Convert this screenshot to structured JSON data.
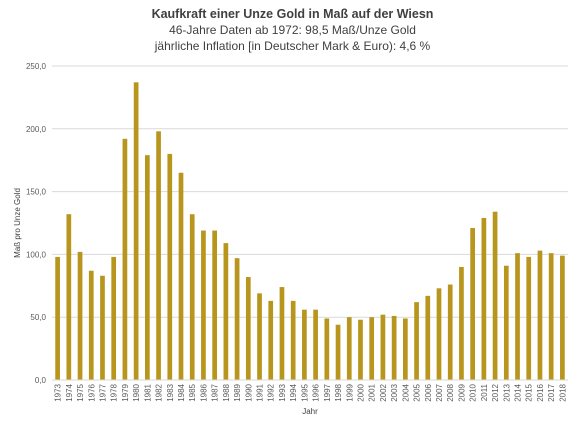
{
  "chart_data": {
    "type": "bar",
    "title": "Kaufkraft einer Unze Gold in Maß auf der Wiesn",
    "subtitle_lines": [
      "46-Jahre Daten ab 1972:  98,5 Maß/Unze Gold",
      "jährliche Inflation [in Deutscher Mark & Euro): 4,6 %"
    ],
    "xlabel": "Jahr",
    "ylabel": "Maß pro Unze Gold",
    "ylim": [
      0,
      250
    ],
    "yticks": [
      "0,0",
      "50,0",
      "100,0",
      "150,0",
      "200,0",
      "250,0"
    ],
    "grid": true,
    "legend": "none",
    "bar_color": "#B8961E",
    "categories": [
      "1973",
      "1974",
      "1975",
      "1976",
      "1977",
      "1978",
      "1979",
      "1980",
      "1981",
      "1982",
      "1983",
      "1984",
      "1985",
      "1986",
      "1987",
      "1988",
      "1989",
      "1990",
      "1991",
      "1992",
      "1993",
      "1994",
      "1995",
      "1996",
      "1997",
      "1998",
      "1999",
      "2000",
      "2001",
      "2002",
      "2003",
      "2004",
      "2005",
      "2006",
      "2007",
      "2008",
      "2009",
      "2010",
      "2011",
      "2012",
      "2013",
      "2014",
      "2015",
      "2016",
      "2017",
      "2018"
    ],
    "values": [
      98,
      132,
      102,
      87,
      83,
      98,
      192,
      237,
      179,
      198,
      180,
      165,
      132,
      119,
      119,
      109,
      97,
      82,
      69,
      63,
      74,
      63,
      56,
      56,
      49,
      44,
      50,
      48,
      50,
      52,
      51,
      49,
      62,
      67,
      73,
      76,
      90,
      121,
      129,
      134,
      91,
      101,
      98,
      103,
      101,
      99
    ]
  }
}
